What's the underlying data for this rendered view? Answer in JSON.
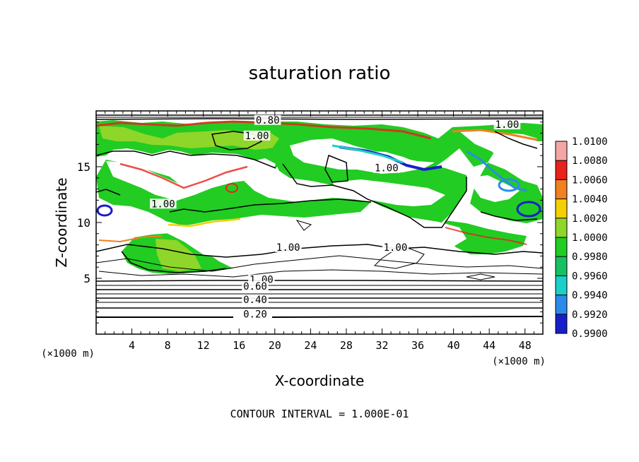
{
  "chart_data": {
    "type": "heatmap",
    "title": "saturation ratio",
    "xlabel": "X-coordinate",
    "ylabel": "Z-coordinate",
    "x_unit": "(×1000 m)",
    "y_unit": "(×1000 m)",
    "xlim": [
      0,
      50
    ],
    "ylim": [
      0,
      20
    ],
    "x_ticks": [
      "4",
      "8",
      "12",
      "16",
      "20",
      "24",
      "28",
      "32",
      "36",
      "40",
      "44",
      "48"
    ],
    "y_ticks": [
      "5",
      "10",
      "15"
    ],
    "footer": "CONTOUR INTERVAL = 1.000E-01",
    "colorbar": {
      "levels": [
        "1.0100",
        "1.0080",
        "1.0060",
        "1.0040",
        "1.0020",
        "1.0000",
        "0.9980",
        "0.9960",
        "0.9940",
        "0.9920",
        "0.9900"
      ],
      "colors": [
        "#f4a6a6",
        "#e8221c",
        "#f08020",
        "#f3d000",
        "#8fd62a",
        "#22cc22",
        "#18c064",
        "#1ad0c8",
        "#2a8ce8",
        "#1620c8",
        "#7a1aa6"
      ]
    },
    "contour_labels": [
      {
        "text": "0.80",
        "x": 19.2,
        "z": 19.0
      },
      {
        "text": "1.00",
        "x": 18.0,
        "z": 17.6
      },
      {
        "text": "1.00",
        "x": 46.0,
        "z": 18.6
      },
      {
        "text": "1.00",
        "x": 32.5,
        "z": 14.7
      },
      {
        "text": "1.00",
        "x": 7.5,
        "z": 11.5
      },
      {
        "text": "1.00",
        "x": 21.5,
        "z": 7.6
      },
      {
        "text": "1.00",
        "x": 33.5,
        "z": 7.6
      },
      {
        "text": "1.00",
        "x": 18.5,
        "z": 4.7
      },
      {
        "text": "0.60",
        "x": 17.8,
        "z": 4.1
      },
      {
        "text": "0.40",
        "x": 17.8,
        "z": 2.9
      },
      {
        "text": "0.20",
        "x": 17.8,
        "z": 1.6
      }
    ]
  }
}
